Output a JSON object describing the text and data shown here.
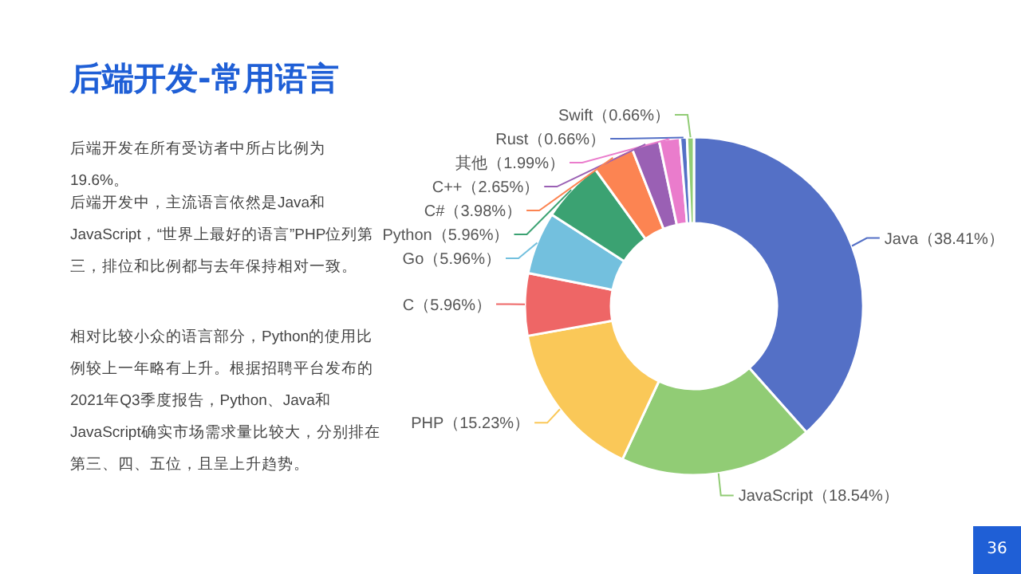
{
  "chart_data": {
    "type": "donut",
    "title": "后端开发-常用语言",
    "annotations": [
      "后端开发在所有受访者中所占比例为19.6%。",
      "后端开发中，主流语言依然是Java和JavaScript，“世界上最好的语言”PHP位列第三，排位和比例都与去年保持相对一致。",
      "相对比较小众的语言部分，Python的使用比例较上一年略有上升。根据招聘平台发布的2021年Q3季度报告，Python、Java和JavaScript确实市场需求量比较大，分别排在第三、四、五位，且呈上升趋势。",
      "36"
    ],
    "categories": [
      "Java",
      "JavaScript",
      "PHP",
      "C",
      "Go",
      "Python",
      "C#",
      "C++",
      "其他",
      "Rust",
      "Swift"
    ],
    "values": [
      38.41,
      18.54,
      15.23,
      5.96,
      5.96,
      5.96,
      3.98,
      2.65,
      1.99,
      0.66,
      0.66
    ],
    "colors": [
      "#5470c6",
      "#91cc75",
      "#fac858",
      "#ee6666",
      "#73c0de",
      "#3ba272",
      "#fc8452",
      "#9a60b4",
      "#ea7ccc",
      "#5470c6",
      "#91cc75"
    ],
    "value_labels": [
      "（38.41%）",
      "（18.54%）",
      "（15.23%）",
      "（5.96%）",
      "（5.96%）",
      "（5.96%）",
      "（3.98%）",
      "（2.65%）",
      "（1.99%）",
      "（0.66%）",
      "（0.66%）"
    ]
  }
}
